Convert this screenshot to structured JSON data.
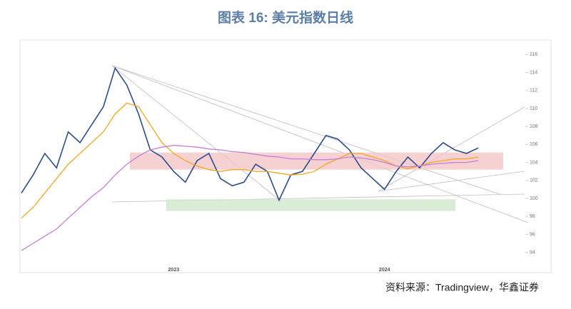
{
  "chart_data": {
    "type": "line",
    "title": "图表 16: 美元指数日线",
    "source": "资料来源：Tradingview，华鑫证券",
    "categories": [
      null,
      null,
      null,
      null,
      null,
      null,
      null,
      null,
      null,
      null,
      null,
      null,
      null,
      "2023",
      null,
      null,
      null,
      null,
      null,
      null,
      null,
      null,
      null,
      null,
      null,
      null,
      null,
      null,
      null,
      null,
      null,
      "2024",
      null,
      null,
      null,
      null,
      null,
      null,
      null,
      null
    ],
    "series": [
      {
        "color": "#2b4c8c",
        "values": [
          100.6,
          102.6,
          105.0,
          103.4,
          107.4,
          106.2,
          108.2,
          110.2,
          114.5,
          112.6,
          109.4,
          105.4,
          104.6,
          103.0,
          101.8,
          104.2,
          105.0,
          102.2,
          101.4,
          101.8,
          103.8,
          103.0,
          99.8,
          102.6,
          103.0,
          105.0,
          107.0,
          106.6,
          105.4,
          103.4,
          102.2,
          101.0,
          103.0,
          104.6,
          103.4,
          105.0,
          106.2,
          105.4,
          105.0,
          105.6
        ]
      },
      {
        "color": "#f5a623",
        "values": [
          97.8,
          99.0,
          100.6,
          102.2,
          103.8,
          105.0,
          106.2,
          107.4,
          109.4,
          110.6,
          110.2,
          108.2,
          106.2,
          105.0,
          104.2,
          103.6,
          103.2,
          103.0,
          103.2,
          103.2,
          103.0,
          103.0,
          102.8,
          102.6,
          102.7,
          103.0,
          103.8,
          104.4,
          105.0,
          105.0,
          104.6,
          104.2,
          103.6,
          103.3,
          103.6,
          104.0,
          104.2,
          104.4,
          104.4,
          104.6
        ]
      },
      {
        "color": "#c77ddb",
        "values": [
          94.2,
          95.0,
          95.8,
          96.6,
          97.8,
          99.0,
          100.2,
          101.2,
          102.6,
          103.8,
          104.7,
          105.4,
          105.7,
          105.9,
          105.8,
          105.7,
          105.5,
          105.4,
          105.2,
          105.1,
          104.9,
          104.7,
          104.6,
          104.4,
          104.4,
          104.3,
          104.3,
          104.4,
          104.6,
          104.5,
          104.3,
          104.0,
          103.6,
          103.5,
          103.6,
          103.8,
          103.9,
          104.0,
          104.0,
          104.2
        ]
      }
    ],
    "bands": [
      {
        "range": [
          103.2,
          105.1
        ],
        "color": "#f4c6c6"
      },
      {
        "range": [
          98.6,
          99.9
        ],
        "color": "#cfe8cc"
      }
    ],
    "ylim": [
      92.7,
      117.3
    ],
    "yticks": [
      94,
      96,
      98,
      100,
      102,
      104,
      106,
      108,
      110,
      112,
      114,
      116
    ]
  }
}
